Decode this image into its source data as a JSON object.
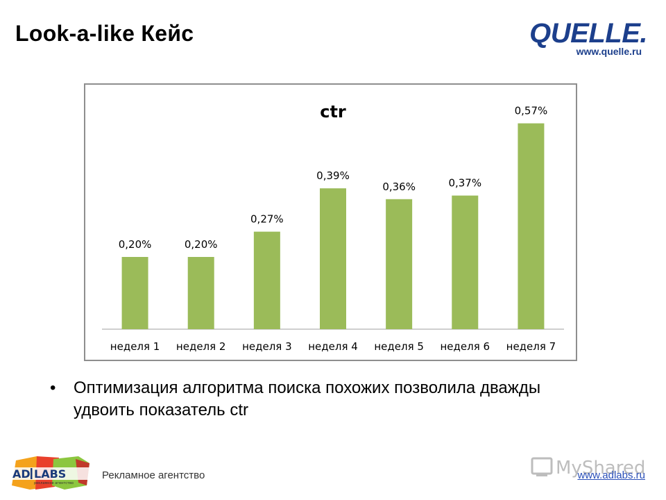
{
  "slide": {
    "title": "Look-a-like Кейс"
  },
  "quelle_logo": {
    "wordmark": "QUELLE.",
    "url": "www.quelle.ru",
    "color": "#1c3f8c",
    "dot_color": "#e0232c"
  },
  "chart_data": {
    "type": "bar",
    "title": "ctr",
    "categories": [
      "неделя 1",
      "неделя 2",
      "неделя 3",
      "неделя 4",
      "неделя 5",
      "неделя 6",
      "неделя 7"
    ],
    "values": [
      0.2,
      0.2,
      0.27,
      0.39,
      0.36,
      0.37,
      0.57
    ],
    "data_labels": [
      "0,20%",
      "0,20%",
      "0,27%",
      "0,39%",
      "0,36%",
      "0,37%",
      "0,57%"
    ],
    "unit": "%",
    "ylim": [
      0,
      0.6
    ],
    "grid": false,
    "legend": "none",
    "bar_color": "#9bbb59"
  },
  "bullet": {
    "text": "Оптимизация алгоритма поиска похожих позволила дважды удвоить показатель ctr"
  },
  "footer": {
    "logo_left": "AD",
    "logo_right": "LABS",
    "logo_tagline": "рекламное агентство",
    "agency_label": "Рекламное агентство",
    "site": "www.adlabs.ru",
    "watermark": "MyShared"
  }
}
